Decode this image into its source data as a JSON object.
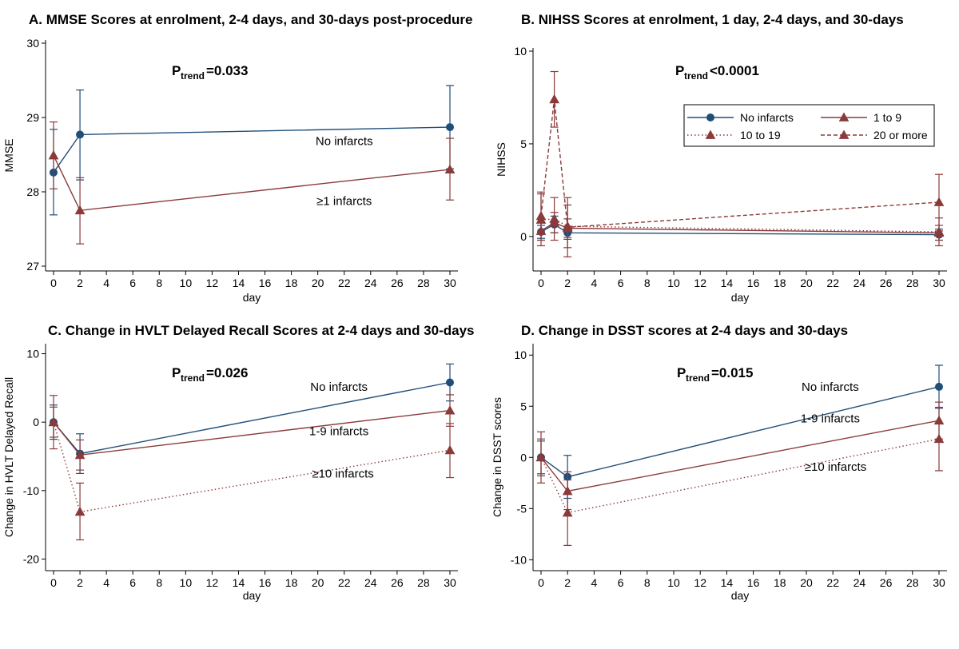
{
  "colors": {
    "navy": "#1f4e79",
    "maroon": "#8b3a3a"
  },
  "chart_data": [
    {
      "id": "A",
      "type": "line",
      "title": "A. MMSE Scores at enrolment, 2-4 days, and 30-days post-procedure",
      "xlabel": "day",
      "ylabel": "MMSE",
      "xlim": [
        0,
        30
      ],
      "ylim": [
        27,
        30
      ],
      "xticks": [
        0,
        2,
        4,
        6,
        8,
        10,
        12,
        14,
        16,
        18,
        20,
        22,
        24,
        26,
        28,
        30
      ],
      "yticks": [
        27,
        28,
        29,
        30
      ],
      "ptrend_prefix": "P",
      "ptrend_sub": "trend",
      "ptrend_value": "=0.033",
      "series": [
        {
          "name": "No infarcts",
          "color": "navy",
          "marker": "circle",
          "dash": "solid",
          "points": [
            {
              "x": 0,
              "y": 28.26,
              "lo": 27.69,
              "hi": 28.84
            },
            {
              "x": 2,
              "y": 28.77,
              "lo": 28.16,
              "hi": 29.37
            },
            {
              "x": 30,
              "y": 28.87,
              "lo": 28.31,
              "hi": 29.43
            }
          ]
        },
        {
          "name": "≥1 infarcts",
          "color": "maroon",
          "marker": "triangle",
          "dash": "solid",
          "points": [
            {
              "x": 0,
              "y": 28.49,
              "lo": 28.04,
              "hi": 28.94
            },
            {
              "x": 2,
              "y": 27.75,
              "lo": 27.3,
              "hi": 28.19
            },
            {
              "x": 30,
              "y": 28.3,
              "lo": 27.89,
              "hi": 28.72
            }
          ]
        }
      ],
      "annotations": [
        {
          "text": "No infarcts",
          "x": 22,
          "y": 28.63
        },
        {
          "text": "≥1 infarcts",
          "x": 22,
          "y": 27.82
        }
      ]
    },
    {
      "id": "B",
      "type": "line",
      "title": "B. NIHSS Scores at enrolment, 1 day, 2-4 days, and 30-days",
      "xlabel": "day",
      "ylabel": "NIHSS",
      "xlim": [
        0,
        30
      ],
      "ylim": [
        -1.6,
        10
      ],
      "xticks": [
        0,
        2,
        4,
        6,
        8,
        10,
        12,
        14,
        16,
        18,
        20,
        22,
        24,
        26,
        28,
        30
      ],
      "yticks": [
        0,
        5,
        10
      ],
      "ptrend_prefix": "P",
      "ptrend_sub": "trend",
      "ptrend_value": "<0.0001",
      "legend": [
        {
          "label": "No infarcts",
          "series": 0
        },
        {
          "label": "1 to 9",
          "series": 1
        },
        {
          "label": "10 to 19",
          "series": 2
        },
        {
          "label": "20 or more",
          "series": 3
        }
      ],
      "series": [
        {
          "name": "No infarcts",
          "color": "navy",
          "marker": "circle",
          "dash": "solid",
          "points": [
            {
              "x": 0,
              "y": 0.25,
              "lo": -0.1,
              "hi": 0.6
            },
            {
              "x": 1,
              "y": 0.65,
              "lo": 0.2,
              "hi": 1.1
            },
            {
              "x": 2,
              "y": 0.2,
              "lo": -0.15,
              "hi": 0.55
            },
            {
              "x": 30,
              "y": 0.1,
              "lo": -0.2,
              "hi": 0.4
            }
          ]
        },
        {
          "name": "1 to 9",
          "color": "maroon",
          "marker": "triangle",
          "dash": "solid",
          "points": [
            {
              "x": 0,
              "y": 0.3,
              "lo": -0.2,
              "hi": 0.8
            },
            {
              "x": 1,
              "y": 0.75,
              "lo": 0.2,
              "hi": 1.3
            },
            {
              "x": 2,
              "y": 0.45,
              "lo": -0.05,
              "hi": 0.95
            },
            {
              "x": 30,
              "y": 0.2,
              "lo": -0.2,
              "hi": 0.6
            }
          ]
        },
        {
          "name": "10 to 19",
          "color": "maroon",
          "marker": "triangle",
          "dash": "dotted",
          "points": [
            {
              "x": 0,
              "y": 0.9,
              "lo": -0.5,
              "hi": 2.3
            },
            {
              "x": 1,
              "y": 0.95,
              "lo": -0.2,
              "hi": 2.1
            },
            {
              "x": 2,
              "y": 0.55,
              "lo": -0.6,
              "hi": 1.7
            },
            {
              "x": 30,
              "y": 0.25,
              "lo": -0.5,
              "hi": 1.0
            }
          ]
        },
        {
          "name": "20 or more",
          "color": "maroon",
          "marker": "triangle",
          "dash": "dashed",
          "points": [
            {
              "x": 0,
              "y": 1.1,
              "lo": -0.2,
              "hi": 2.4
            },
            {
              "x": 1,
              "y": 7.4,
              "lo": 5.9,
              "hi": 8.9
            },
            {
              "x": 2,
              "y": 0.5,
              "lo": -1.1,
              "hi": 2.1
            },
            {
              "x": 30,
              "y": 1.85,
              "lo": 0.3,
              "hi": 3.35
            }
          ]
        }
      ],
      "annotations": []
    },
    {
      "id": "C",
      "type": "line",
      "title": "C. Change in HVLT Delayed Recall Scores at 2-4 days and 30-days",
      "xlabel": "day",
      "ylabel": "Change in HVLT Delayed Recall",
      "xlim": [
        0,
        30
      ],
      "ylim": [
        -21,
        11
      ],
      "xticks": [
        0,
        2,
        4,
        6,
        8,
        10,
        12,
        14,
        16,
        18,
        20,
        22,
        24,
        26,
        28,
        30
      ],
      "yticks": [
        -20,
        -10,
        0,
        10
      ],
      "ptrend_prefix": "P",
      "ptrend_sub": "trend",
      "ptrend_value": "=0.026",
      "series": [
        {
          "name": "No infarcts",
          "color": "navy",
          "marker": "circle",
          "dash": "solid",
          "points": [
            {
              "x": 0,
              "y": 0,
              "lo": -2.5,
              "hi": 2.5
            },
            {
              "x": 2,
              "y": -4.6,
              "lo": -7.5,
              "hi": -1.7
            },
            {
              "x": 30,
              "y": 5.8,
              "lo": 3.1,
              "hi": 8.5
            }
          ]
        },
        {
          "name": "1-9 infarcts",
          "color": "maroon",
          "marker": "triangle",
          "dash": "solid",
          "points": [
            {
              "x": 0,
              "y": 0,
              "lo": -2.2,
              "hi": 2.2
            },
            {
              "x": 2,
              "y": -4.8,
              "lo": -7.0,
              "hi": -2.6
            },
            {
              "x": 30,
              "y": 1.7,
              "lo": -0.6,
              "hi": 4.0
            }
          ]
        },
        {
          "name": "≥10 infarcts",
          "color": "maroon",
          "marker": "triangle",
          "dash": "dotted",
          "points": [
            {
              "x": 0,
              "y": 0,
              "lo": -3.9,
              "hi": 3.9
            },
            {
              "x": 2,
              "y": -13.1,
              "lo": -17.2,
              "hi": -8.9
            },
            {
              "x": 30,
              "y": -4.1,
              "lo": -8.1,
              "hi": -0.2
            }
          ]
        }
      ],
      "annotations": [
        {
          "text": "No infarcts",
          "x": 21.6,
          "y": 4.6
        },
        {
          "text": "1-9 infarcts",
          "x": 21.6,
          "y": -1.9
        },
        {
          "text": "≥10 infarcts",
          "x": 21.9,
          "y": -8.1
        }
      ]
    },
    {
      "id": "D",
      "type": "line",
      "title": "D. Change in DSST scores at 2-4 days and 30-days",
      "xlabel": "day",
      "ylabel": "Change in DSST scores",
      "xlim": [
        0,
        30
      ],
      "ylim": [
        -10.6,
        10.8
      ],
      "xticks": [
        0,
        2,
        4,
        6,
        8,
        10,
        12,
        14,
        16,
        18,
        20,
        22,
        24,
        26,
        28,
        30
      ],
      "yticks": [
        -10,
        -5,
        0,
        5,
        10
      ],
      "ptrend_prefix": "P",
      "ptrend_sub": "trend",
      "ptrend_value": "=0.015",
      "series": [
        {
          "name": "No infarcts",
          "color": "navy",
          "marker": "circle",
          "dash": "solid",
          "points": [
            {
              "x": 0,
              "y": 0,
              "lo": -1.6,
              "hi": 1.6
            },
            {
              "x": 2,
              "y": -1.9,
              "lo": -4.0,
              "hi": 0.2
            },
            {
              "x": 30,
              "y": 6.9,
              "lo": 4.8,
              "hi": 9.0
            }
          ]
        },
        {
          "name": "1-9 infarcts",
          "color": "maroon",
          "marker": "triangle",
          "dash": "solid",
          "points": [
            {
              "x": 0,
              "y": 0,
              "lo": -1.8,
              "hi": 1.8
            },
            {
              "x": 2,
              "y": -3.3,
              "lo": -5.1,
              "hi": -1.4
            },
            {
              "x": 30,
              "y": 3.6,
              "lo": 1.8,
              "hi": 5.4
            }
          ]
        },
        {
          "name": "≥10 infarcts",
          "color": "maroon",
          "marker": "triangle",
          "dash": "dotted",
          "points": [
            {
              "x": 0,
              "y": 0,
              "lo": -2.5,
              "hi": 2.5
            },
            {
              "x": 2,
              "y": -5.4,
              "lo": -8.6,
              "hi": -2.2
            },
            {
              "x": 30,
              "y": 1.8,
              "lo": -1.3,
              "hi": 4.9
            }
          ]
        }
      ],
      "annotations": [
        {
          "text": "No infarcts",
          "x": 21.8,
          "y": 6.5
        },
        {
          "text": "1-9 infarcts",
          "x": 21.8,
          "y": 3.4
        },
        {
          "text": "≥10 infarcts",
          "x": 22.2,
          "y": -1.3
        }
      ]
    }
  ]
}
